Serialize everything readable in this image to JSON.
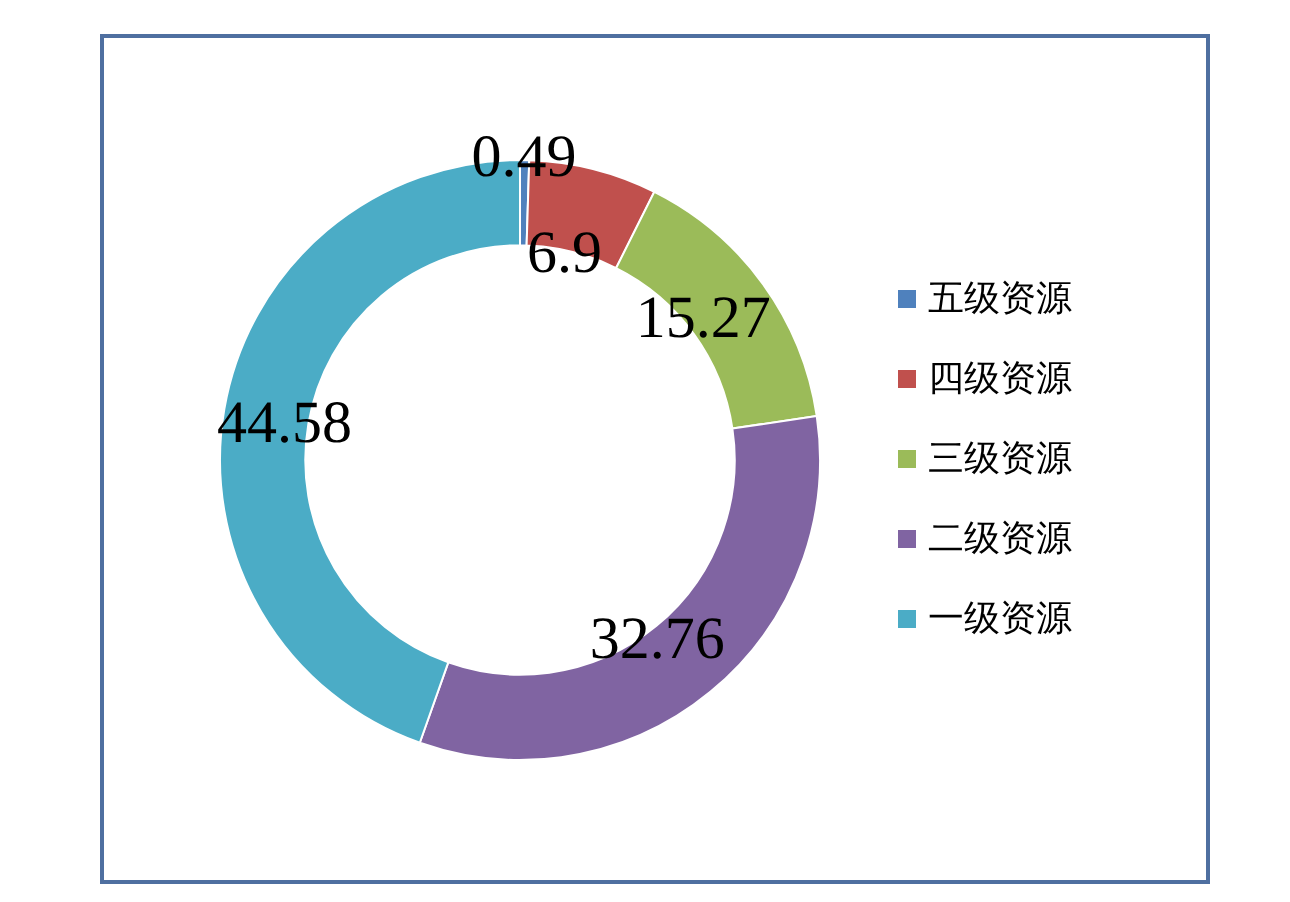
{
  "chart_data": {
    "type": "donut",
    "categories": [
      "五级资源",
      "四级资源",
      "三级资源",
      "二级资源",
      "一级资源"
    ],
    "values": [
      0.49,
      6.9,
      15.27,
      32.76,
      44.58
    ],
    "colors": [
      "#4f81bd",
      "#c0504d",
      "#9bbb59",
      "#8064a2",
      "#4bacc6"
    ],
    "data_labels": true,
    "legend": "right"
  }
}
